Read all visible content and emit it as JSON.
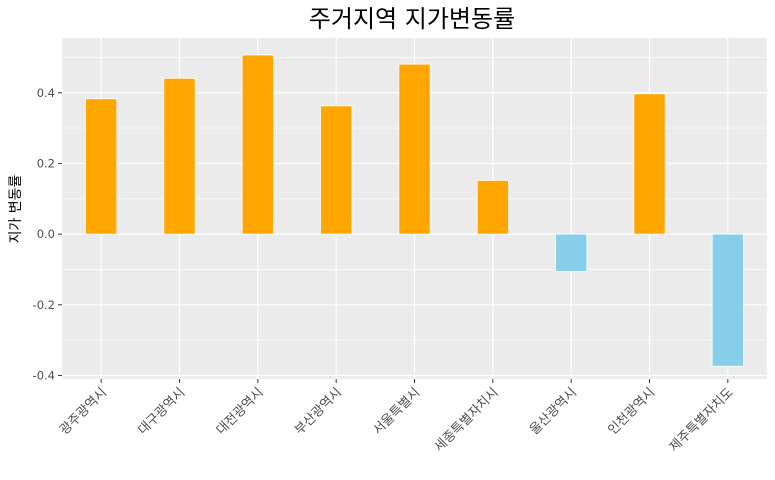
{
  "chart_data": {
    "type": "bar",
    "title": "주거지역 지가변동률",
    "xlabel": "",
    "ylabel": "지가 변동률",
    "categories": [
      "광주광역시",
      "대구광역시",
      "대전광역시",
      "부산광역시",
      "서울특별시",
      "세종특별자치시",
      "울산광역시",
      "인천광역시",
      "제주특별자치도"
    ],
    "values": [
      0.383,
      0.441,
      0.507,
      0.363,
      0.481,
      0.152,
      -0.106,
      0.397,
      -0.374
    ],
    "ylim": [
      -0.41,
      0.555
    ],
    "yticks": [
      -0.4,
      -0.2,
      0.0,
      0.2,
      0.4
    ],
    "ytick_labels": [
      "-0.4",
      "-0.2",
      "0.0",
      "0.2",
      "0.4"
    ],
    "grid": true,
    "legend": "none",
    "colors": {
      "positive": "#FFA500",
      "negative": "#87CEEB",
      "panel_background": "#EBEBEB",
      "grid": "#FFFFFF"
    }
  }
}
